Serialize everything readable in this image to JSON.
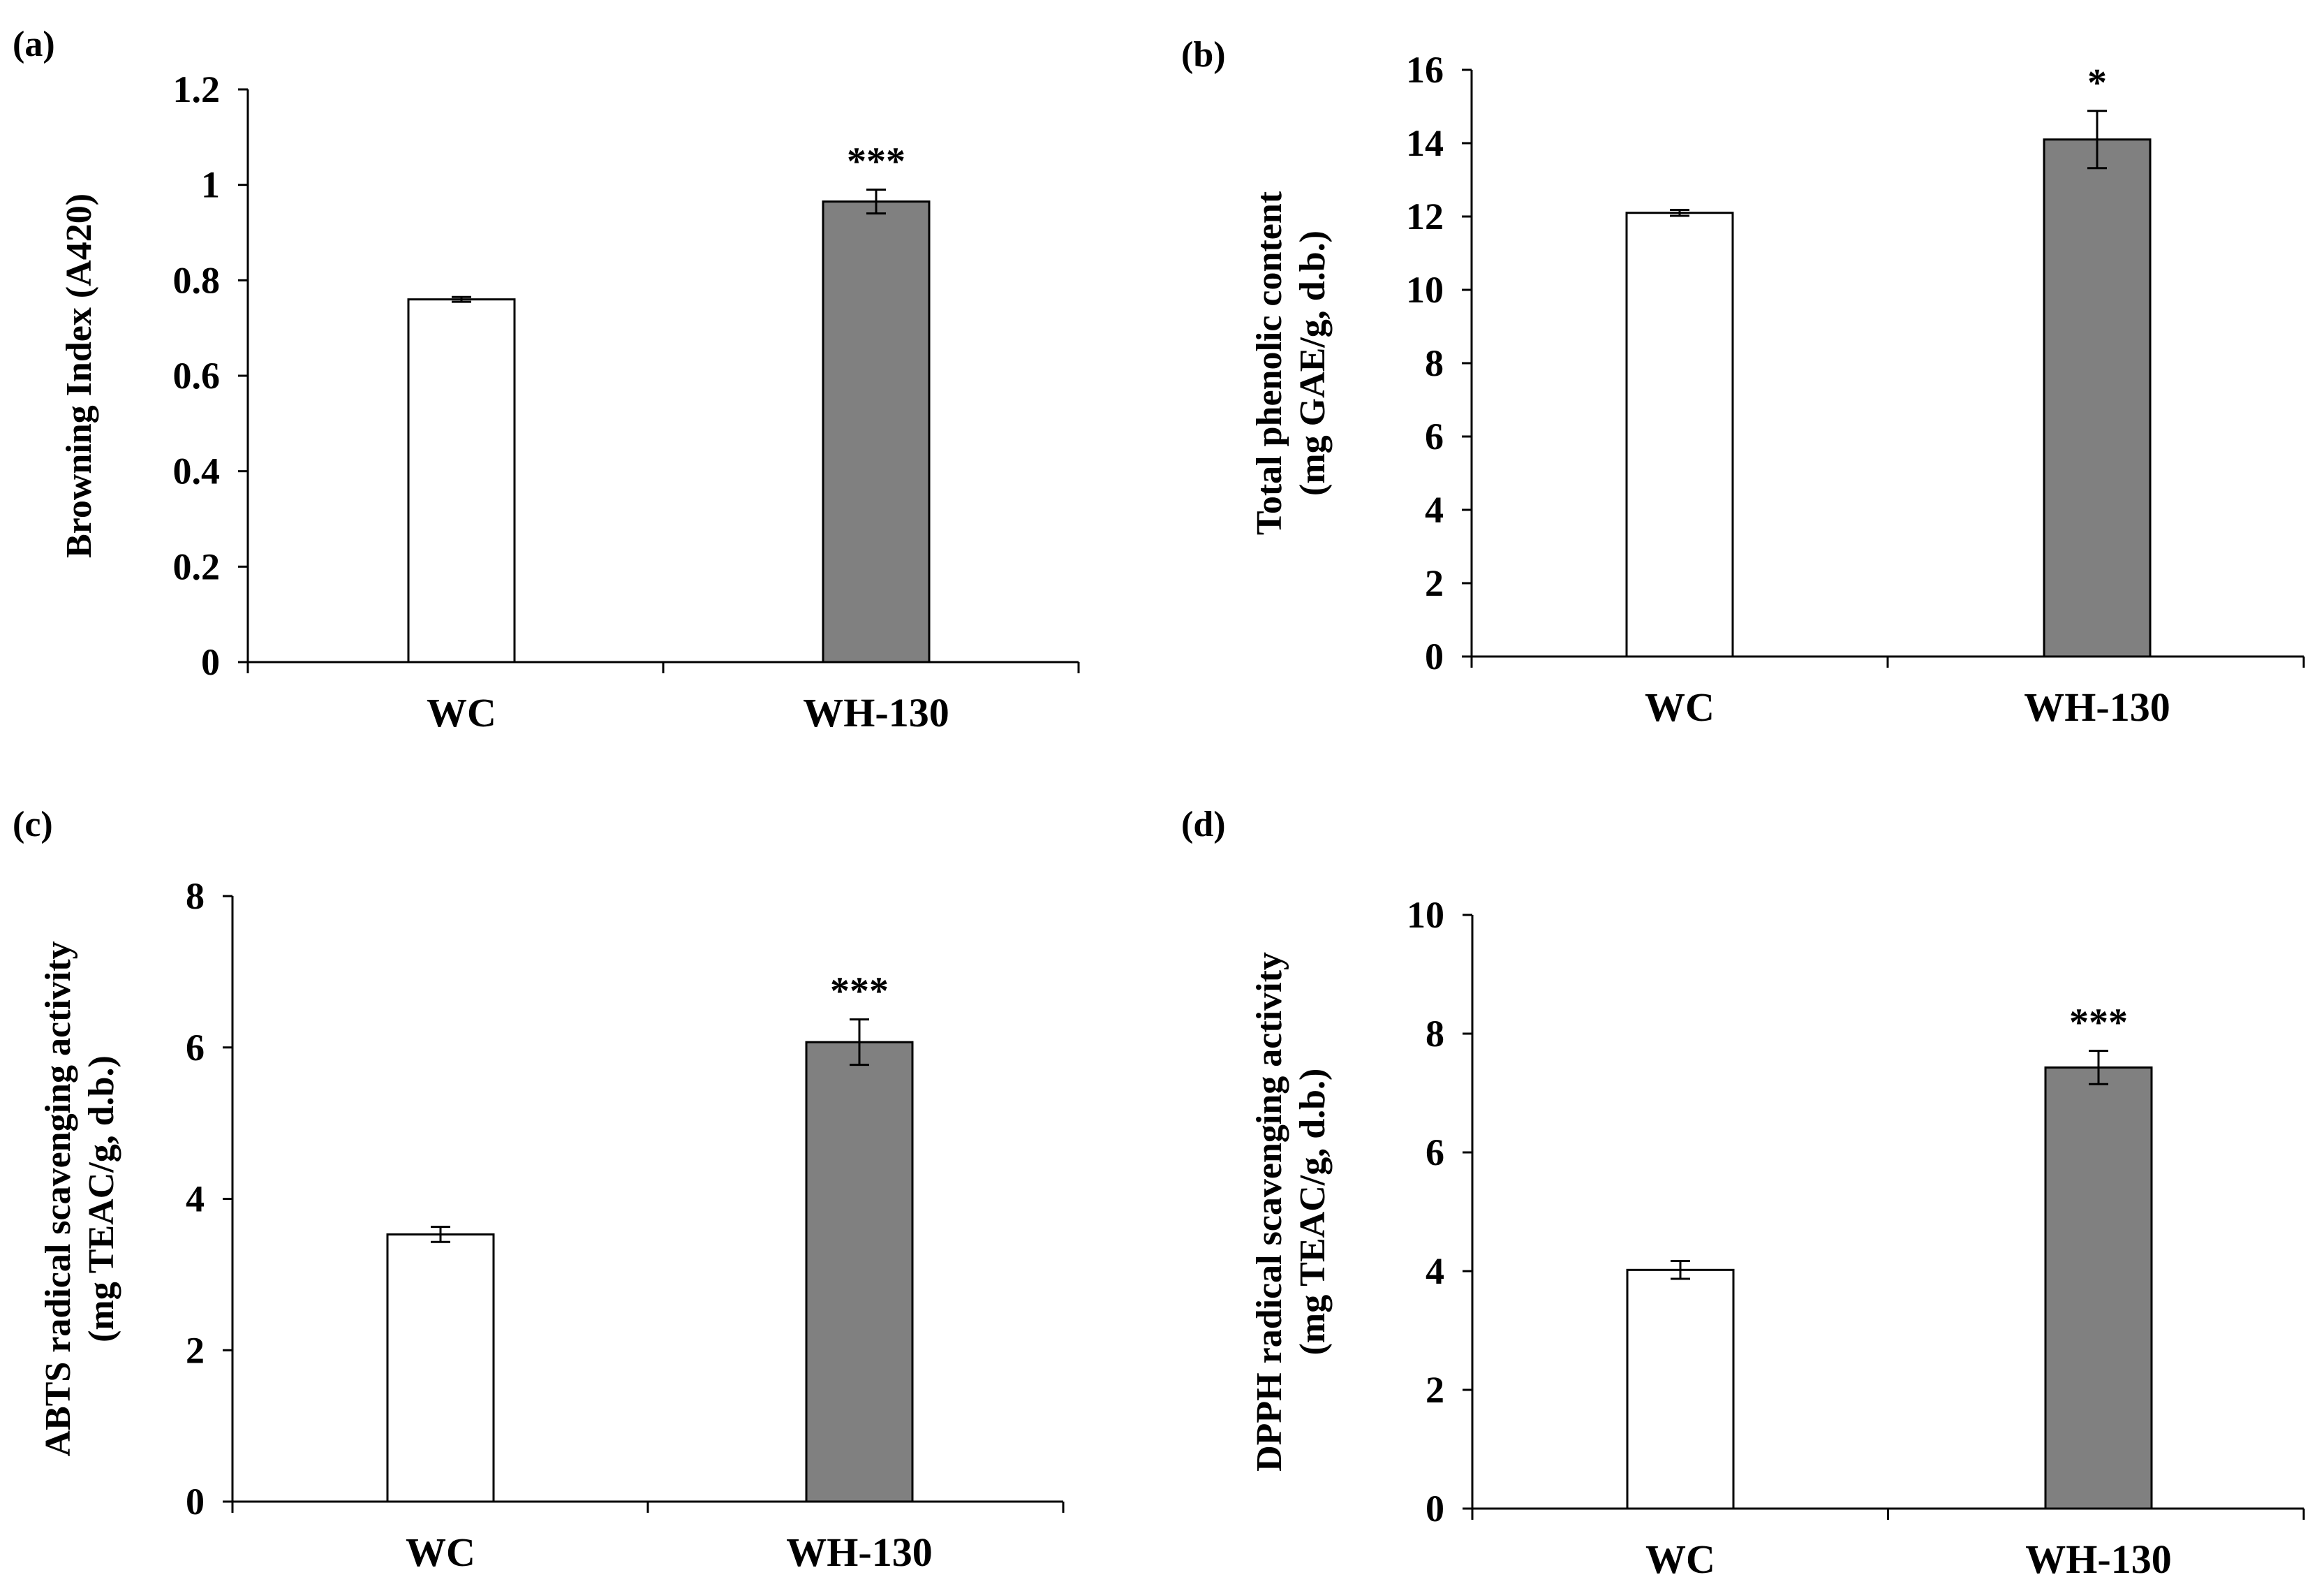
{
  "colors": {
    "wc_fill": "#ffffff",
    "wh_fill": "#808080",
    "stroke": "#000000"
  },
  "chart_data": [
    {
      "type": "bar",
      "panel": "(a)",
      "categories": [
        "WC",
        "WH-130"
      ],
      "values": [
        0.76,
        0.965
      ],
      "errors": [
        0.005,
        0.025
      ],
      "significance": [
        "",
        "***"
      ],
      "ylabel": [
        "Browning Index (A420)"
      ],
      "ylim": [
        0,
        1.2
      ],
      "yticks": [
        0,
        0.2,
        0.4,
        0.6,
        0.8,
        1,
        1.2
      ],
      "ytick_labels": [
        "0",
        "0.2",
        "0.4",
        "0.6",
        "0.8",
        "1",
        "1.2"
      ]
    },
    {
      "type": "bar",
      "panel": "(b)",
      "categories": [
        "WC",
        "WH-130"
      ],
      "values": [
        12.1,
        14.1
      ],
      "errors": [
        0.08,
        0.78
      ],
      "significance": [
        "",
        "*"
      ],
      "ylabel": [
        "Total phenolic content",
        "(mg GAE/g, d.b.)"
      ],
      "ylim": [
        0,
        16
      ],
      "yticks": [
        0,
        2,
        4,
        6,
        8,
        10,
        12,
        14,
        16
      ],
      "ytick_labels": [
        "0",
        "2",
        "4",
        "6",
        "8",
        "10",
        "12",
        "14",
        "16"
      ]
    },
    {
      "type": "bar",
      "panel": "(c)",
      "categories": [
        "WC",
        "WH-130"
      ],
      "values": [
        3.53,
        6.07
      ],
      "errors": [
        0.1,
        0.3
      ],
      "significance": [
        "",
        "***"
      ],
      "ylabel": [
        "ABTS radical scavenging activity",
        "(mg TEAC/g, d.b.)"
      ],
      "ylim": [
        0,
        8
      ],
      "yticks": [
        0,
        2,
        4,
        6,
        8
      ],
      "ytick_labels": [
        "0",
        "2",
        "4",
        "6",
        "8"
      ]
    },
    {
      "type": "bar",
      "panel": "(d)",
      "categories": [
        "WC",
        "WH-130"
      ],
      "values": [
        4.02,
        7.43
      ],
      "errors": [
        0.15,
        0.28
      ],
      "significance": [
        "",
        "***"
      ],
      "ylabel": [
        "DPPH radical scavenging activity",
        "(mg TEAC/g, d.b.)"
      ],
      "ylim": [
        0,
        10
      ],
      "yticks": [
        0,
        2,
        4,
        6,
        8,
        10
      ],
      "ytick_labels": [
        "0",
        "2",
        "4",
        "6",
        "8",
        "10"
      ]
    }
  ]
}
